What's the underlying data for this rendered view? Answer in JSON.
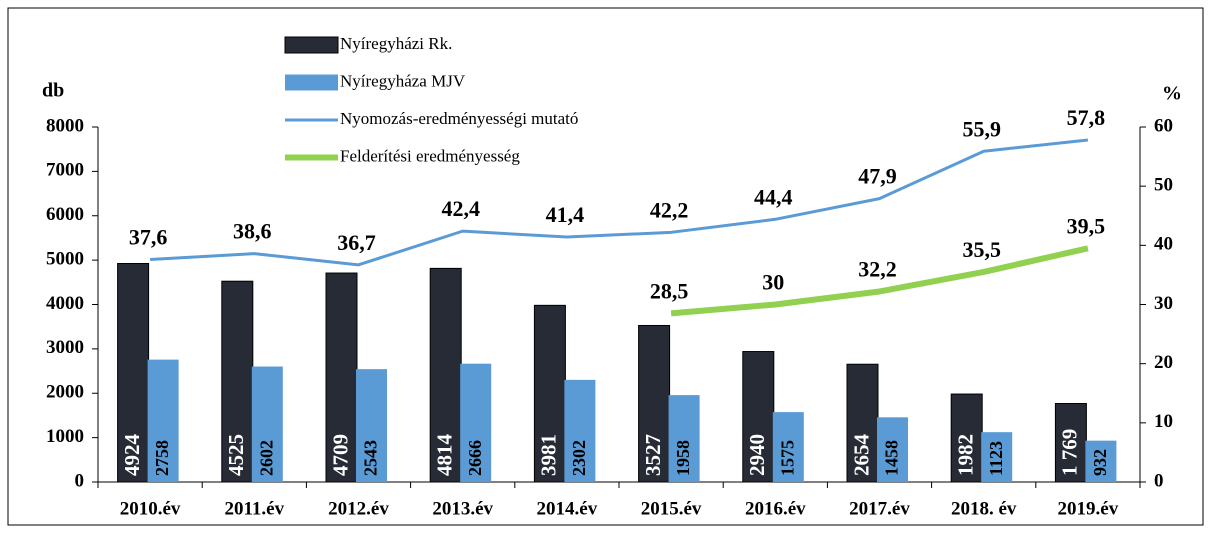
{
  "chart_data": {
    "type": "bar-line",
    "categories": [
      "2010.év",
      "2011.év",
      "2012.év",
      "2013.év",
      "2014.év",
      "2015.év",
      "2016.év",
      "2017.év",
      "2018. év",
      "2019.év"
    ],
    "ylabel": "db",
    "y2label": "%",
    "ylim": [
      0,
      8000
    ],
    "yticks": [
      0,
      1000,
      2000,
      3000,
      4000,
      5000,
      6000,
      7000,
      8000
    ],
    "y2lim": [
      0,
      60
    ],
    "y2ticks": [
      0,
      10,
      20,
      30,
      40,
      50,
      60
    ],
    "series": [
      {
        "name": "Nyíregyházi Rk.",
        "type": "bar",
        "color": "#262b36",
        "values": [
          4924,
          4525,
          4709,
          4814,
          3981,
          3527,
          2940,
          2654,
          1982,
          1769
        ],
        "value_labels": [
          "4924",
          "4525",
          "4709",
          "4814",
          "3981",
          "3527",
          "2940",
          "2654",
          "1982",
          "1 769"
        ]
      },
      {
        "name": "Nyíregyháza MJV",
        "type": "bar",
        "color": "#5b9bd5",
        "values": [
          2758,
          2602,
          2543,
          2666,
          2302,
          1958,
          1575,
          1458,
          1123,
          932
        ]
      },
      {
        "name": "Nyomozás-eredményességi mutató",
        "type": "line",
        "axis": "y2",
        "color": "#5b9bd5",
        "values": [
          37.6,
          38.6,
          36.7,
          42.4,
          41.4,
          42.2,
          44.4,
          47.9,
          55.9,
          57.8
        ],
        "value_labels": [
          "37,6",
          "38,6",
          "36,7",
          "42,4",
          "41,4",
          "42,2",
          "44,4",
          "47,9",
          "55,9",
          "57,8"
        ]
      },
      {
        "name": "Felderítési eredményesség",
        "type": "line",
        "axis": "y2",
        "color": "#92d050",
        "values": [
          null,
          null,
          null,
          null,
          null,
          28.5,
          30,
          32.2,
          35.5,
          39.5
        ],
        "value_labels": [
          null,
          null,
          null,
          null,
          null,
          "28,5",
          "30",
          "32,2",
          "35,5",
          "39,5"
        ]
      }
    ]
  }
}
